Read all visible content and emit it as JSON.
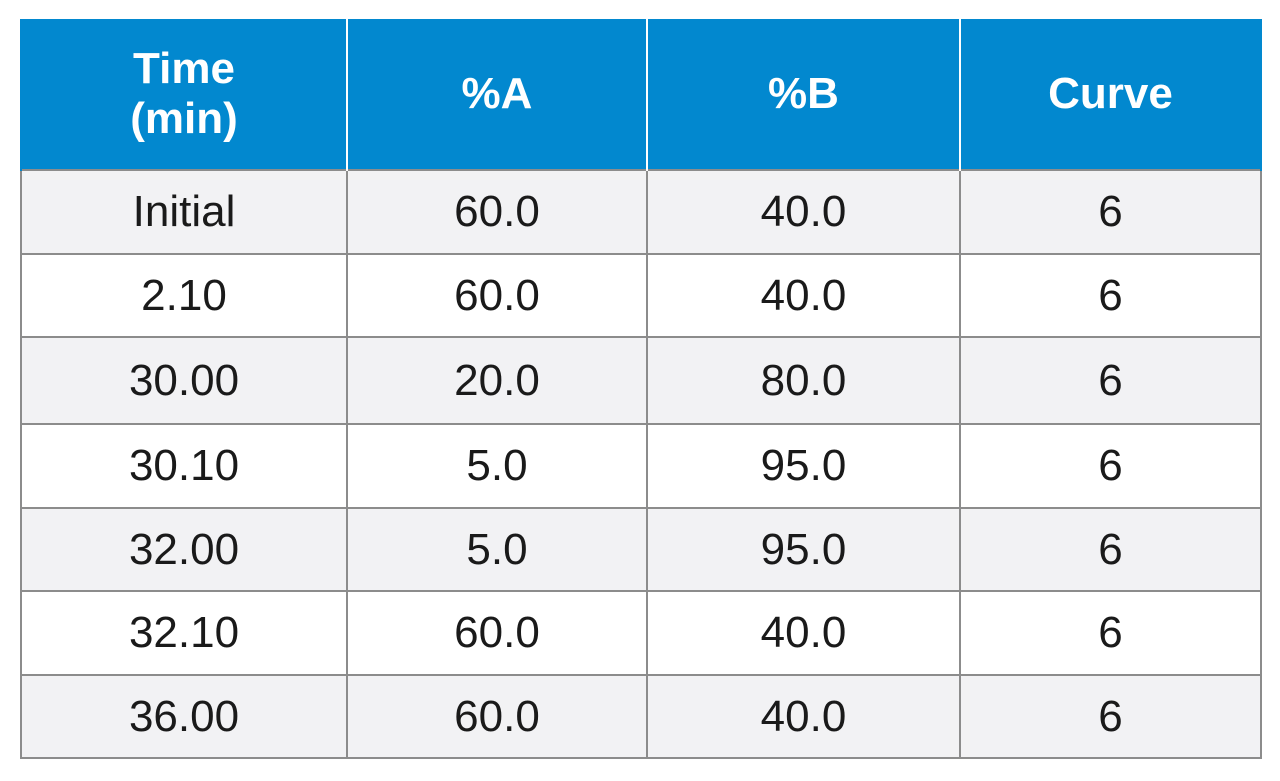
{
  "table": {
    "headers": [
      {
        "lines": [
          "Time",
          "(min)"
        ]
      },
      {
        "lines": [
          "%A"
        ]
      },
      {
        "lines": [
          "%B"
        ]
      },
      {
        "lines": [
          "Curve"
        ]
      }
    ],
    "rows": [
      [
        "Initial",
        "60.0",
        "40.0",
        "6"
      ],
      [
        "2.10",
        "60.0",
        "40.0",
        "6"
      ],
      [
        "30.00",
        "20.0",
        "80.0",
        "6"
      ],
      [
        "30.10",
        "5.0",
        "95.0",
        "6"
      ],
      [
        "32.00",
        "5.0",
        "95.0",
        "6"
      ],
      [
        "32.10",
        "60.0",
        "40.0",
        "6"
      ],
      [
        "36.00",
        "60.0",
        "40.0",
        "6"
      ]
    ],
    "colors": {
      "header_bg": "#0288cf",
      "header_text": "#ffffff",
      "row_shaded": "#f2f2f4",
      "row_plain": "#ffffff",
      "border": "#8c8c8c"
    }
  }
}
